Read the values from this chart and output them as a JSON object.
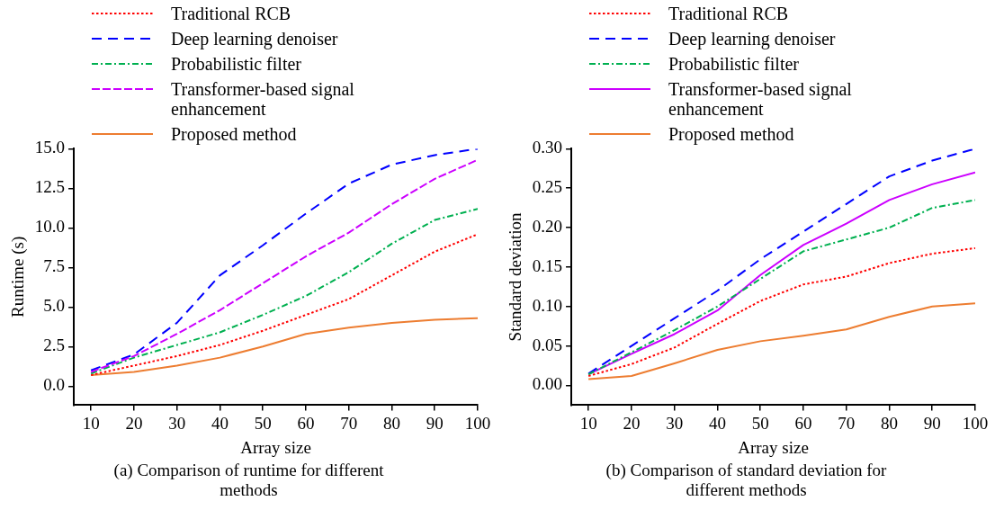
{
  "chart_data": [
    {
      "type": "line",
      "title": "(a) Comparison of runtime for different methods",
      "xlabel": "Array size",
      "ylabel": "Runtime (s)",
      "x": [
        10,
        20,
        30,
        40,
        50,
        60,
        70,
        80,
        90,
        100
      ],
      "xlim": [
        6,
        100
      ],
      "xticks": [
        10,
        20,
        30,
        40,
        50,
        60,
        70,
        80,
        90,
        100
      ],
      "ylim": [
        -1.2,
        15
      ],
      "yticks": [
        {
          "value": 0,
          "label": "0.0"
        },
        {
          "value": 2.5,
          "label": "2.5"
        },
        {
          "value": 5,
          "label": "5.0"
        },
        {
          "value": 7.5,
          "label": "7.5"
        },
        {
          "value": 10,
          "label": "10.0"
        },
        {
          "value": 12.5,
          "label": "12.5"
        },
        {
          "value": 15,
          "label": "15.0"
        }
      ],
      "legend": "top left",
      "marker": "none",
      "series": [
        {
          "name": "Traditional RCB",
          "color": "#ff0000",
          "line_style": "dotted",
          "values": [
            0.7,
            1.3,
            1.9,
            2.6,
            3.5,
            4.5,
            5.5,
            7.0,
            8.5,
            9.6
          ]
        },
        {
          "name": "Deep learning denoiser",
          "color": "#0000ff",
          "line_style": "dashed",
          "values": [
            1.0,
            2.0,
            4.0,
            7.0,
            8.9,
            10.9,
            12.8,
            14.0,
            14.6,
            15.0
          ]
        },
        {
          "name": "Probabilistic filter",
          "color": "#00b050",
          "line_style": "dashdot",
          "values": [
            0.8,
            1.8,
            2.6,
            3.4,
            4.5,
            5.7,
            7.2,
            9.0,
            10.5,
            11.2
          ]
        },
        {
          "name": "Transformer-based signal enhancement",
          "color": "#cc00ff",
          "line_style": "longdash",
          "values": [
            0.9,
            1.9,
            3.3,
            4.8,
            6.5,
            8.2,
            9.7,
            11.5,
            13.1,
            14.3
          ]
        },
        {
          "name": "Proposed method",
          "color": "#ed7d31",
          "line_style": "solid",
          "values": [
            0.7,
            0.9,
            1.3,
            1.8,
            2.5,
            3.3,
            3.7,
            4.0,
            4.2,
            4.3
          ]
        }
      ]
    },
    {
      "type": "line",
      "title": "(b) Comparison of  standard deviation for different methods",
      "xlabel": "Array size",
      "ylabel": "Standard deviation",
      "x": [
        10,
        20,
        30,
        40,
        50,
        60,
        70,
        80,
        90,
        100
      ],
      "xlim": [
        6,
        100
      ],
      "xticks": [
        10,
        20,
        30,
        40,
        50,
        60,
        70,
        80,
        90,
        100
      ],
      "ylim": [
        -0.025,
        0.3
      ],
      "yticks": [
        {
          "value": 0,
          "label": "0.00"
        },
        {
          "value": 0.05,
          "label": "0.05"
        },
        {
          "value": 0.1,
          "label": "0.10"
        },
        {
          "value": 0.15,
          "label": "0.15"
        },
        {
          "value": 0.2,
          "label": "0.20"
        },
        {
          "value": 0.25,
          "label": "0.25"
        },
        {
          "value": 0.3,
          "label": "0.30"
        }
      ],
      "legend": "top left",
      "marker": "none",
      "series": [
        {
          "name": "Traditional RCB",
          "color": "#ff0000",
          "line_style": "dotted",
          "values": [
            0.012,
            0.027,
            0.048,
            0.078,
            0.107,
            0.128,
            0.138,
            0.155,
            0.167,
            0.174
          ]
        },
        {
          "name": "Deep learning denoiser",
          "color": "#0000ff",
          "line_style": "dashed",
          "values": [
            0.015,
            0.05,
            0.085,
            0.12,
            0.16,
            0.195,
            0.23,
            0.265,
            0.285,
            0.3
          ]
        },
        {
          "name": "Probabilistic filter",
          "color": "#00b050",
          "line_style": "dashdot",
          "values": [
            0.014,
            0.042,
            0.07,
            0.1,
            0.135,
            0.17,
            0.185,
            0.2,
            0.225,
            0.235
          ]
        },
        {
          "name": "Transformer-based signal enhancement",
          "color": "#cc00ff",
          "line_style": "solid",
          "values": [
            0.014,
            0.04,
            0.065,
            0.095,
            0.14,
            0.178,
            0.205,
            0.235,
            0.255,
            0.27
          ]
        },
        {
          "name": "Proposed method",
          "color": "#ed7d31",
          "line_style": "solid",
          "values": [
            0.008,
            0.012,
            0.028,
            0.045,
            0.056,
            0.063,
            0.071,
            0.087,
            0.1,
            0.104
          ]
        }
      ]
    }
  ]
}
